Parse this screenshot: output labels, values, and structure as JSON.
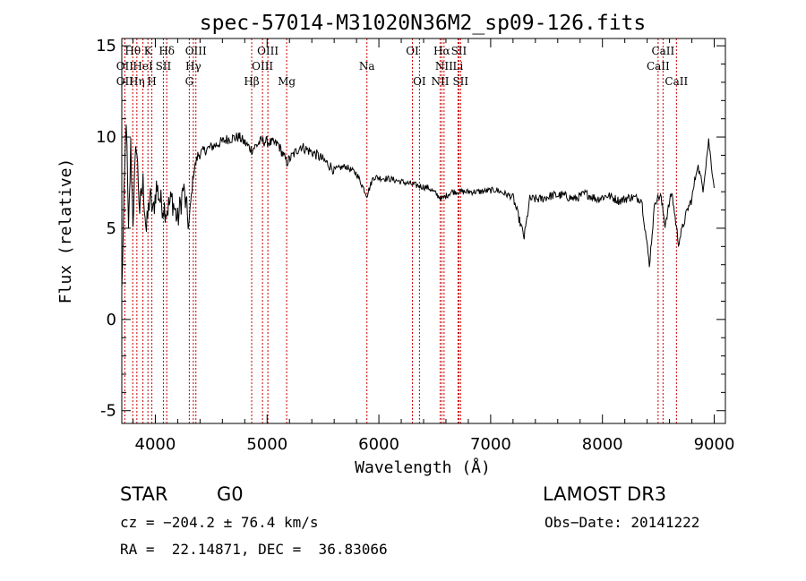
{
  "chart_data": {
    "type": "line",
    "title": "spec-57014-M31020N36M2_sp09-126.fits",
    "xlabel": "Wavelength (Å)",
    "ylabel": "Flux (relative)",
    "xlim": [
      3700,
      9100
    ],
    "ylim": [
      -5.7,
      15.4
    ],
    "xticks": [
      4000,
      5000,
      6000,
      7000,
      8000,
      9000
    ],
    "yticks": [
      -5,
      0,
      5,
      10,
      15
    ],
    "grid": false,
    "series": [
      {
        "name": "flux",
        "x": [
          3700,
          3720,
          3740,
          3760,
          3780,
          3800,
          3830,
          3860,
          3890,
          3920,
          3950,
          3980,
          4010,
          4050,
          4100,
          4150,
          4200,
          4250,
          4300,
          4340,
          4380,
          4450,
          4550,
          4650,
          4750,
          4862,
          4950,
          5100,
          5175,
          5300,
          5450,
          5550,
          5600,
          5700,
          5800,
          5893,
          5950,
          6100,
          6300,
          6450,
          6563,
          6650,
          6750,
          6900,
          7050,
          7200,
          7300,
          7350,
          7450,
          7550,
          7650,
          7750,
          7850,
          7950,
          8050,
          8150,
          8250,
          8350,
          8420,
          8470,
          8520,
          8560,
          8620,
          8680,
          8760,
          8800,
          8850,
          8900,
          8950,
          9000
        ],
        "y": [
          1.5,
          6.5,
          11.2,
          4.5,
          9.5,
          5.5,
          9.8,
          6.0,
          7.5,
          4.8,
          6.8,
          5.8,
          7.3,
          6.4,
          6.0,
          6.6,
          5.4,
          7.2,
          5.2,
          8.0,
          9.0,
          9.3,
          9.6,
          9.9,
          10.0,
          9.3,
          9.8,
          9.6,
          8.6,
          9.5,
          9.0,
          8.5,
          8.2,
          8.4,
          8.0,
          6.8,
          7.8,
          7.7,
          7.4,
          7.2,
          6.6,
          7.0,
          7.0,
          7.0,
          7.1,
          6.7,
          4.5,
          6.6,
          6.6,
          6.8,
          6.8,
          6.6,
          6.9,
          6.6,
          6.8,
          6.5,
          6.7,
          6.6,
          3.0,
          6.5,
          6.8,
          5.2,
          7.0,
          4.2,
          6.0,
          6.6,
          8.5,
          7.2,
          9.8,
          7.2
        ]
      }
    ],
    "spectral_lines": [
      {
        "label": "Hθ",
        "wavelength": 3798,
        "row": 1
      },
      {
        "label": "K",
        "wavelength": 3934,
        "row": 1
      },
      {
        "label": "Hδ",
        "wavelength": 4102,
        "row": 1
      },
      {
        "label": "OII",
        "wavelength": 3727,
        "row": 2
      },
      {
        "label": "HeI",
        "wavelength": 3889,
        "row": 2
      },
      {
        "label": "SII",
        "wavelength": 4072,
        "row": 2
      },
      {
        "label": "OII",
        "wavelength": 3727,
        "row": 3
      },
      {
        "label": "Hη",
        "wavelength": 3835,
        "row": 3
      },
      {
        "label": "H",
        "wavelength": 3969,
        "row": 3
      },
      {
        "label": "OIII",
        "wavelength": 4363,
        "row": 1
      },
      {
        "label": "Hγ",
        "wavelength": 4340,
        "row": 2
      },
      {
        "label": "G",
        "wavelength": 4304,
        "row": 3
      },
      {
        "label": "Hβ",
        "wavelength": 4862,
        "row": 3
      },
      {
        "label": "OIII",
        "wavelength": 5007,
        "row": 1
      },
      {
        "label": "OIII",
        "wavelength": 4959,
        "row": 2
      },
      {
        "label": "Mg",
        "wavelength": 5175,
        "row": 3
      },
      {
        "label": "Na",
        "wavelength": 5893,
        "row": 2
      },
      {
        "label": "OI",
        "wavelength": 6300,
        "row": 1
      },
      {
        "label": "OI",
        "wavelength": 6363,
        "row": 3
      },
      {
        "label": "Hα",
        "wavelength": 6563,
        "row": 1
      },
      {
        "label": "SII",
        "wavelength": 6716,
        "row": 1
      },
      {
        "label": "NII",
        "wavelength": 6583,
        "row": 2
      },
      {
        "label": "Li",
        "wavelength": 6708,
        "row": 2
      },
      {
        "label": "NII",
        "wavelength": 6548,
        "row": 3
      },
      {
        "label": "SII",
        "wavelength": 6731,
        "row": 3
      },
      {
        "label": "CaII",
        "wavelength": 8542,
        "row": 1
      },
      {
        "label": "CaII",
        "wavelength": 8498,
        "row": 2
      },
      {
        "label": "CaII",
        "wavelength": 8662,
        "row": 3
      }
    ]
  },
  "info": {
    "object_class": "STAR",
    "subclass": "G0",
    "survey": "LAMOST DR3",
    "cz": "cz = −204.2 ± 76.4 km/s",
    "obs_date": "Obs−Date: 20141222",
    "coords": "RA =  22.14871, DEC =  36.83066"
  },
  "colors": {
    "line_marker": "#cc0000",
    "spectrum": "#000000"
  }
}
